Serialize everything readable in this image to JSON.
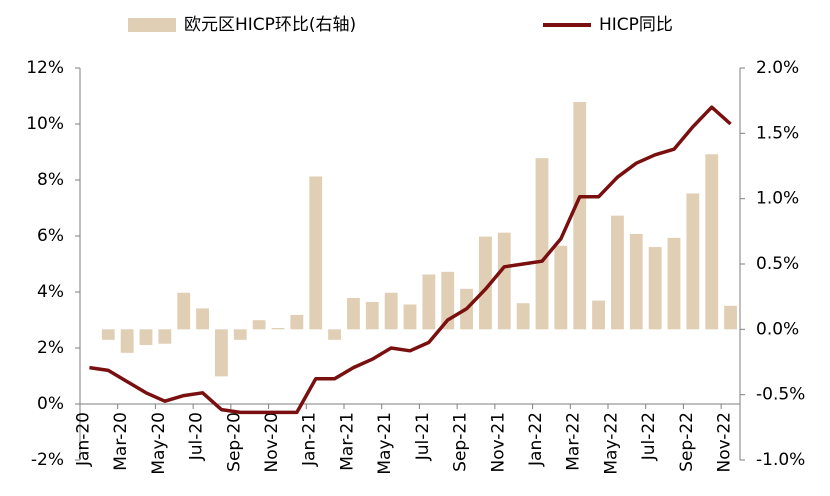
{
  "chart_data": {
    "type": "bar-line",
    "categories": [
      "Jan-20",
      null,
      "Mar-20",
      null,
      "May-20",
      null,
      "Jul-20",
      null,
      "Sep-20",
      null,
      "Nov-20",
      null,
      "Jan-21",
      null,
      "Mar-21",
      null,
      "May-21",
      null,
      "Jul-21",
      null,
      "Sep-21",
      null,
      "Nov-21",
      null,
      "Jan-22",
      null,
      "Mar-22",
      null,
      "May-22",
      null,
      "Jul-22",
      null,
      "Sep-22",
      null,
      "Nov-22"
    ],
    "series": [
      {
        "name": "欧元区HICP环比(右轴)",
        "type": "bar",
        "axis": "y2",
        "color": "#e0cfb5",
        "values": [
          null,
          -0.08,
          -0.18,
          -0.12,
          -0.11,
          0.28,
          0.16,
          -0.36,
          -0.08,
          0.07,
          0.01,
          0.11,
          1.17,
          -0.08,
          0.24,
          0.21,
          0.28,
          0.19,
          0.42,
          0.44,
          0.31,
          0.71,
          0.74,
          0.2,
          1.31,
          0.64,
          1.74,
          0.22,
          0.87,
          0.73,
          0.63,
          0.7,
          1.04,
          1.34,
          0.18
        ]
      },
      {
        "name": "HICP同比",
        "type": "line",
        "color": "#7a0f10",
        "values": [
          1.3,
          1.2,
          0.8,
          0.4,
          0.1,
          0.3,
          0.4,
          -0.2,
          -0.3,
          -0.3,
          -0.3,
          -0.3,
          0.9,
          0.9,
          1.3,
          1.6,
          2.0,
          1.9,
          2.2,
          3.0,
          3.4,
          4.1,
          4.9,
          5.0,
          5.1,
          5.9,
          7.4,
          7.4,
          8.1,
          8.6,
          8.9,
          9.1,
          9.9,
          10.6,
          10.0
        ]
      }
    ],
    "ylim": [
      -2,
      12
    ],
    "yticks": [
      {
        "value": -2,
        "label": "-2%"
      },
      {
        "value": 0,
        "label": "0%"
      },
      {
        "value": 2,
        "label": "2%"
      },
      {
        "value": 4,
        "label": "4%"
      },
      {
        "value": 6,
        "label": "6%"
      },
      {
        "value": 8,
        "label": "8%"
      },
      {
        "value": 10,
        "label": "10%"
      },
      {
        "value": 12,
        "label": "12%"
      }
    ],
    "y2lim": [
      -1,
      2
    ],
    "y2ticks": [
      {
        "value": -1,
        "label": "-1.0%"
      },
      {
        "value": -0.5,
        "label": "-0.5%"
      },
      {
        "value": 0,
        "label": "0.0%"
      },
      {
        "value": 0.5,
        "label": "0.5%"
      },
      {
        "value": 1,
        "label": "1.0%"
      },
      {
        "value": 1.5,
        "label": "1.5%"
      },
      {
        "value": 2,
        "label": "2.0%"
      }
    ]
  }
}
